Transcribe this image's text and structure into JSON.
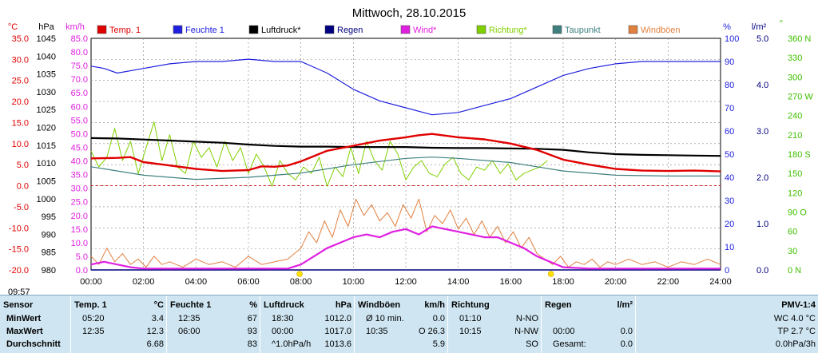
{
  "chart_data": {
    "type": "line",
    "title": "Mittwoch, 28.10.2015",
    "x_range": [
      "00:00",
      "24:00"
    ],
    "x_tick_labels": [
      "00:00",
      "02:00",
      "04:00",
      "06:00",
      "08:00",
      "10:00",
      "12:00",
      "14:00",
      "16:00",
      "18:00",
      "20:00",
      "22:00",
      "24:00"
    ],
    "sunrise_time": "07:57",
    "sunset_time": "17:32",
    "current_time_label": "09:57",
    "grid": true,
    "legend_position": "top",
    "legend": [
      {
        "label": "Temp. 1",
        "color": "#e00000"
      },
      {
        "label": "Feuchte 1",
        "color": "#2020e0"
      },
      {
        "label": "Luftdruck*",
        "color": "#000000"
      },
      {
        "label": "Regen",
        "color": "#000080"
      },
      {
        "label": "Wind*",
        "color": "#e020e0"
      },
      {
        "label": "Richtung*",
        "color": "#80d000"
      },
      {
        "label": "Taupunkt",
        "color": "#408080"
      },
      {
        "label": "Windböen",
        "color": "#e08040"
      }
    ],
    "axes": {
      "temp": {
        "unit": "°C",
        "color": "#e00000",
        "range": [
          -20,
          35
        ],
        "ticks": [
          "35.0",
          "30.0",
          "25.0",
          "20.0",
          "15.0",
          "10.0",
          "5.0",
          "0.0",
          "-5.0",
          "-10.0",
          "-15.0",
          "-20.0"
        ]
      },
      "pressure": {
        "unit": "hPa",
        "color": "#000000",
        "range": [
          980,
          1045
        ],
        "ticks": [
          "1045",
          "1040",
          "1035",
          "1030",
          "1025",
          "1020",
          "1015",
          "1010",
          "1005",
          "1000",
          "995",
          "990",
          "985",
          "980"
        ]
      },
      "wind": {
        "unit": "km/h",
        "color": "#e020e0",
        "range": [
          0,
          85
        ],
        "ticks": [
          "85.0",
          "80.0",
          "75.0",
          "70.0",
          "65.0",
          "60.0",
          "55.0",
          "50.0",
          "45.0",
          "40.0",
          "35.0",
          "30.0",
          "25.0",
          "20.0",
          "15.0",
          "10.0",
          "5.0",
          "0.0"
        ]
      },
      "humidity": {
        "unit": "%",
        "color": "#2020e0",
        "range": [
          0,
          100
        ],
        "ticks": [
          "100",
          "90",
          "80",
          "70",
          "60",
          "50",
          "40",
          "30",
          "20",
          "10",
          "0"
        ]
      },
      "rain": {
        "unit": "l/m²",
        "color": "#000080",
        "range": [
          0,
          5
        ],
        "ticks": [
          "5.0",
          "4.0",
          "3.0",
          "2.0",
          "1.0",
          "0.0"
        ]
      },
      "direction": {
        "unit": "°",
        "color": "#40c000",
        "range": [
          0,
          360
        ],
        "ticks": [
          "360 N",
          "330",
          "300",
          "270 W",
          "240",
          "210",
          "180 S",
          "150",
          "120",
          "90 O",
          "60",
          "30",
          "0 N"
        ]
      }
    },
    "series": [
      {
        "name": "Temp. 1",
        "axis": "temp",
        "x": [
          0,
          1,
          1.5,
          2,
          3,
          4,
          5,
          6,
          6.5,
          7,
          7.5,
          8,
          9,
          10,
          11,
          12,
          12.5,
          13,
          14,
          15,
          16,
          17,
          18,
          19,
          20,
          21,
          22,
          23,
          24
        ],
        "values": [
          6.5,
          6.6,
          6.8,
          5.6,
          4.8,
          4.0,
          3.5,
          3.7,
          4.6,
          4.5,
          4.8,
          5.8,
          8.3,
          9.5,
          10.7,
          11.5,
          12.0,
          12.3,
          11.5,
          11.0,
          10.0,
          8.5,
          6.2,
          5.0,
          4.0,
          3.6,
          3.5,
          3.6,
          3.4
        ]
      },
      {
        "name": "Feuchte 1",
        "axis": "humidity",
        "x": [
          0,
          0.5,
          1,
          2,
          3,
          4,
          5,
          6,
          7,
          8,
          9,
          10,
          11,
          12,
          13,
          14,
          15,
          16,
          17,
          18,
          19,
          20,
          21,
          22,
          23,
          24
        ],
        "values": [
          88,
          87,
          85,
          87,
          89,
          90,
          90,
          91,
          90,
          90,
          85,
          78,
          73,
          70,
          67,
          68,
          71,
          74,
          79,
          84,
          87,
          89,
          90,
          90,
          90,
          90
        ]
      },
      {
        "name": "Luftdruck*",
        "axis": "pressure",
        "x": [
          0,
          1,
          2,
          3,
          4,
          5,
          6,
          7,
          8,
          9,
          10,
          11,
          12,
          13,
          14,
          15,
          16,
          17,
          18,
          19,
          20,
          21,
          22,
          23,
          24
        ],
        "values": [
          1017.0,
          1016.9,
          1016.6,
          1016.3,
          1016.0,
          1015.7,
          1015.2,
          1014.8,
          1014.6,
          1014.6,
          1014.5,
          1014.5,
          1014.5,
          1014.3,
          1014.2,
          1014.2,
          1014.1,
          1014.0,
          1013.7,
          1013.0,
          1012.5,
          1012.3,
          1012.2,
          1012.1,
          1012.0
        ]
      },
      {
        "name": "Taupunkt",
        "axis": "temp",
        "x": [
          0,
          2,
          4,
          6,
          7,
          8,
          10,
          12,
          13,
          14,
          16,
          17,
          18,
          20,
          22,
          24
        ],
        "values": [
          4.5,
          2.5,
          1.5,
          2.0,
          2.5,
          3.0,
          5.0,
          6.5,
          6.8,
          6.5,
          5.5,
          4.5,
          3.5,
          2.5,
          2.3,
          2.3
        ]
      },
      {
        "name": "Wind*",
        "axis": "wind",
        "x": [
          0,
          0.5,
          1,
          1.5,
          2,
          3,
          4,
          5,
          6,
          7,
          7.5,
          8,
          8.5,
          9,
          9.5,
          10,
          10.5,
          11,
          11.5,
          12,
          12.5,
          13,
          13.5,
          14,
          14.5,
          15,
          15.5,
          16,
          16.5,
          17,
          17.5,
          18,
          19,
          20,
          21,
          22,
          23,
          24
        ],
        "values": [
          2,
          3,
          2,
          1,
          0.5,
          0.5,
          0.5,
          0.5,
          0.5,
          0.5,
          0.5,
          2,
          5,
          8,
          10,
          12,
          13,
          12,
          14,
          15,
          13,
          16,
          15,
          14,
          13,
          12,
          12,
          10,
          8,
          5,
          3,
          1,
          0.5,
          0.5,
          0.5,
          0.5,
          0.5,
          0.5
        ]
      },
      {
        "name": "Windböen",
        "axis": "wind",
        "x": [
          0,
          0.3,
          0.6,
          0.9,
          1.2,
          1.5,
          1.8,
          2.1,
          2.4,
          2.7,
          3,
          3.5,
          4,
          4.5,
          5,
          5.5,
          6,
          6.5,
          7,
          7.5,
          8,
          8.3,
          8.6,
          8.9,
          9.2,
          9.5,
          9.8,
          10.1,
          10.4,
          10.7,
          11,
          11.3,
          11.6,
          11.9,
          12.2,
          12.5,
          12.8,
          13.1,
          13.4,
          13.7,
          14,
          14.3,
          14.6,
          14.9,
          15.2,
          15.5,
          15.8,
          16.1,
          16.4,
          16.7,
          17,
          17.3,
          17.6,
          17.9,
          18.2,
          18.5,
          18.8,
          19.1,
          19.4,
          19.7,
          20,
          20.5,
          21,
          21.5,
          22,
          22.5,
          23,
          23.5,
          24
        ],
        "values": [
          5,
          2,
          8,
          3,
          6,
          2,
          4,
          1,
          5,
          2,
          3,
          1,
          4,
          2,
          3,
          1,
          5,
          2,
          3,
          4,
          8,
          14,
          10,
          18,
          12,
          22,
          16,
          26,
          20,
          24,
          18,
          21,
          16,
          24,
          19,
          26,
          14,
          20,
          17,
          22,
          15,
          19,
          13,
          18,
          12,
          16,
          10,
          14,
          8,
          12,
          6,
          4,
          2,
          5,
          1,
          3,
          2,
          4,
          1,
          3,
          2,
          4,
          2,
          3,
          1,
          3,
          2,
          4,
          2
        ]
      },
      {
        "name": "Richtung*",
        "axis": "direction",
        "x": [
          0,
          0.3,
          0.6,
          0.9,
          1.2,
          1.5,
          1.8,
          2.1,
          2.4,
          2.7,
          3,
          3.3,
          3.6,
          3.9,
          4.2,
          4.5,
          4.8,
          5.1,
          5.4,
          5.7,
          6,
          6.3,
          6.6,
          6.9,
          7.2,
          7.5,
          7.8,
          8.1,
          8.4,
          8.7,
          9,
          9.3,
          9.6,
          9.9,
          10.2,
          10.5,
          10.8,
          11.1,
          11.4,
          11.7,
          12,
          12.3,
          12.6,
          12.9,
          13.2,
          13.5,
          13.8,
          14.1,
          14.4,
          14.7,
          15,
          15.3,
          15.6,
          15.9,
          16.2,
          16.5,
          16.8,
          17.1,
          17.4
        ],
        "values": [
          185,
          160,
          175,
          220,
          170,
          200,
          150,
          190,
          230,
          170,
          210,
          160,
          150,
          200,
          175,
          190,
          160,
          200,
          170,
          190,
          150,
          180,
          160,
          130,
          170,
          150,
          140,
          160,
          150,
          175,
          130,
          160,
          145,
          190,
          150,
          200,
          170,
          155,
          200,
          180,
          140,
          160,
          170,
          150,
          145,
          165,
          175,
          150,
          140,
          160,
          155,
          170,
          150,
          165,
          140,
          150,
          155,
          160,
          170
        ]
      },
      {
        "name": "Regen",
        "axis": "rain",
        "x": [
          0,
          24
        ],
        "values": [
          0,
          0
        ]
      }
    ]
  },
  "stats": {
    "columns": [
      {
        "header": "Sensor",
        "unit": "",
        "rows": [
          {
            "time": "MinWert",
            "value": ""
          },
          {
            "time": "MaxWert",
            "value": ""
          },
          {
            "time": "Durchschnitt",
            "value": ""
          }
        ]
      },
      {
        "header": "Temp. 1",
        "unit": "°C",
        "rows": [
          {
            "time": "05:20",
            "value": "3.4"
          },
          {
            "time": "12:35",
            "value": "12.3"
          },
          {
            "time": "",
            "value": "6.68"
          }
        ]
      },
      {
        "header": "Feuchte 1",
        "unit": "%",
        "rows": [
          {
            "time": "12:35",
            "value": "67"
          },
          {
            "time": "06:00",
            "value": "93"
          },
          {
            "time": "",
            "value": "83"
          }
        ]
      },
      {
        "header": "Luftdruck",
        "unit": "hPa",
        "rows": [
          {
            "time": "18:30",
            "value": "1012.0"
          },
          {
            "time": "00:00",
            "value": "1017.0"
          },
          {
            "time": "^1.0hPa/h",
            "value": "1013.6"
          }
        ]
      },
      {
        "header": "Windböen",
        "unit": "km/h",
        "rows": [
          {
            "time": "Ø 10 min.",
            "value": "0.0"
          },
          {
            "time": "10:35",
            "value": "O 26.3"
          },
          {
            "time": "",
            "value": "5.9"
          }
        ]
      },
      {
        "header": "Richtung",
        "unit": "",
        "rows": [
          {
            "time": "01:10",
            "value": "N-NO"
          },
          {
            "time": "10:15",
            "value": "N-NW"
          },
          {
            "time": "",
            "value": "SO"
          }
        ]
      },
      {
        "header": "Regen",
        "unit": "l/m²",
        "rows": [
          {
            "time": "",
            "value": ""
          },
          {
            "time": "00:00",
            "value": "0.0"
          },
          {
            "time": "Gesamt:",
            "value": "0.0"
          }
        ]
      },
      {
        "header": "",
        "unit": "PMV-1:4",
        "rows": [
          {
            "time": "",
            "value": "WC 4.0 °C"
          },
          {
            "time": "",
            "value": "TP 2.7 °C"
          },
          {
            "time": "",
            "value": "0.0hPa/3h"
          }
        ]
      }
    ]
  }
}
